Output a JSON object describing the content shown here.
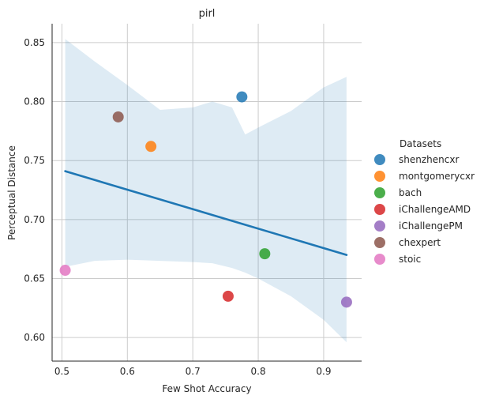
{
  "chart_data": {
    "type": "scatter",
    "title": "pirl",
    "xlabel": "Few Shot Accuracy",
    "ylabel": "Perceptual Distance",
    "xlim": [
      0.485,
      0.958
    ],
    "ylim": [
      0.58,
      0.866
    ],
    "xticks": [
      0.5,
      0.6,
      0.7,
      0.8,
      0.9
    ],
    "xtick_labels": [
      "0.5",
      "0.6",
      "0.7",
      "0.8",
      "0.9"
    ],
    "yticks": [
      0.6,
      0.65,
      0.7,
      0.75,
      0.8,
      0.85
    ],
    "ytick_labels": [
      "0.60",
      "0.65",
      "0.70",
      "0.75",
      "0.80",
      "0.85"
    ],
    "grid": true,
    "legend_title": "Datasets",
    "legend_position": "right",
    "series": [
      {
        "name": "shenzhencxr",
        "color": "#1f77b4",
        "x": 0.775,
        "y": 0.804
      },
      {
        "name": "montgomerycxr",
        "color": "#ff7f0e",
        "x": 0.636,
        "y": 0.762
      },
      {
        "name": "bach",
        "color": "#2ca02c",
        "x": 0.81,
        "y": 0.671
      },
      {
        "name": "iChallengeAMD",
        "color": "#d62728",
        "x": 0.754,
        "y": 0.635
      },
      {
        "name": "iChallengePM",
        "color": "#9467bd",
        "x": 0.935,
        "y": 0.63
      },
      {
        "name": "chexpert",
        "color": "#8c564b",
        "x": 0.586,
        "y": 0.787
      },
      {
        "name": "stoic",
        "color": "#e377c2",
        "x": 0.505,
        "y": 0.657
      }
    ],
    "regression": {
      "color": "#1f77b4",
      "x": [
        0.505,
        0.935
      ],
      "y": [
        0.741,
        0.67
      ]
    },
    "confidence_band": {
      "color": "#1f77b4",
      "x": [
        0.505,
        0.55,
        0.6,
        0.65,
        0.7,
        0.73,
        0.76,
        0.78,
        0.8,
        0.85,
        0.9,
        0.935
      ],
      "upper": [
        0.853,
        0.834,
        0.814,
        0.793,
        0.795,
        0.8,
        0.795,
        0.772,
        0.778,
        0.792,
        0.812,
        0.821
      ],
      "lower": [
        0.66,
        0.665,
        0.666,
        0.665,
        0.664,
        0.663,
        0.659,
        0.655,
        0.65,
        0.635,
        0.615,
        0.596
      ]
    }
  }
}
